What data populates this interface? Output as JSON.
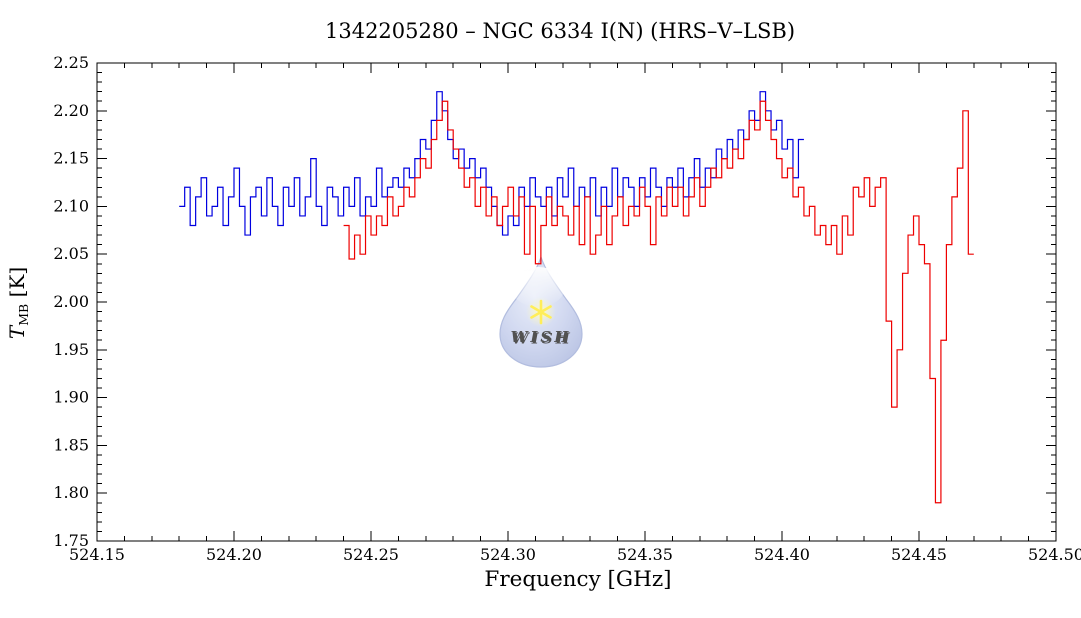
{
  "watermark": {
    "label": "WISH",
    "drop_color": "#b7c2e8",
    "drop_edge_color": "#8e9ed0",
    "star_color": "#ffe60a",
    "text_color": "#ece03a"
  },
  "chart_data": {
    "type": "line",
    "style": "step-histogram",
    "title": "1342205280 – NGC 6334 I(N) (HRS–V–LSB)",
    "xlabel": "Frequency [GHz]",
    "ylabel": "T_MB [K]",
    "ylabel_parts": {
      "symbol": "T",
      "subscript": "MB",
      "unit": " [K]"
    },
    "xlim": [
      524.15,
      524.5
    ],
    "ylim": [
      1.75,
      2.25
    ],
    "x_ticks": [
      "524.15",
      "524.20",
      "524.25",
      "524.30",
      "524.35",
      "524.40",
      "524.45",
      "524.50"
    ],
    "y_ticks": [
      "1.75",
      "1.80",
      "1.85",
      "1.90",
      "1.95",
      "2.00",
      "2.05",
      "2.10",
      "2.15",
      "2.20",
      "2.25"
    ],
    "x_minor_step": 0.01,
    "y_minor_step": 0.01,
    "grid": false,
    "legend": null,
    "axis_color": "#000000",
    "series": [
      {
        "name": "blue-spectrum",
        "color": "#0000e0",
        "x_start": 524.18,
        "x_step": 0.002,
        "values": [
          2.1,
          2.12,
          2.08,
          2.11,
          2.13,
          2.09,
          2.1,
          2.12,
          2.08,
          2.11,
          2.14,
          2.1,
          2.07,
          2.11,
          2.12,
          2.09,
          2.13,
          2.1,
          2.08,
          2.12,
          2.1,
          2.13,
          2.09,
          2.11,
          2.15,
          2.1,
          2.08,
          2.12,
          2.11,
          2.09,
          2.12,
          2.1,
          2.13,
          2.09,
          2.11,
          2.1,
          2.14,
          2.11,
          2.12,
          2.13,
          2.12,
          2.14,
          2.13,
          2.15,
          2.17,
          2.16,
          2.19,
          2.22,
          2.2,
          2.17,
          2.15,
          2.16,
          2.14,
          2.15,
          2.13,
          2.14,
          2.12,
          2.1,
          2.08,
          2.07,
          2.09,
          2.08,
          2.12,
          2.1,
          2.13,
          2.11,
          2.1,
          2.12,
          2.09,
          2.13,
          2.11,
          2.14,
          2.1,
          2.12,
          2.11,
          2.13,
          2.09,
          2.12,
          2.1,
          2.14,
          2.11,
          2.13,
          2.12,
          2.1,
          2.13,
          2.11,
          2.14,
          2.12,
          2.1,
          2.13,
          2.12,
          2.14,
          2.11,
          2.13,
          2.15,
          2.12,
          2.14,
          2.13,
          2.16,
          2.15,
          2.17,
          2.16,
          2.18,
          2.17,
          2.2,
          2.19,
          2.22,
          2.2,
          2.18,
          2.19,
          2.16,
          2.17,
          2.13,
          2.17
        ]
      },
      {
        "name": "red-spectrum",
        "color": "#ee0000",
        "x_start": 524.24,
        "x_step": 0.002,
        "values": [
          2.08,
          2.045,
          2.07,
          2.05,
          2.09,
          2.07,
          2.09,
          2.08,
          2.11,
          2.09,
          2.1,
          2.12,
          2.11,
          2.13,
          2.15,
          2.14,
          2.17,
          2.19,
          2.21,
          2.18,
          2.16,
          2.14,
          2.12,
          2.13,
          2.1,
          2.12,
          2.09,
          2.11,
          2.08,
          2.1,
          2.12,
          2.09,
          2.11,
          2.05,
          2.1,
          2.04,
          2.08,
          2.11,
          2.08,
          2.1,
          2.09,
          2.07,
          2.1,
          2.06,
          2.11,
          2.05,
          2.07,
          2.1,
          2.06,
          2.09,
          2.11,
          2.08,
          2.1,
          2.09,
          2.12,
          2.1,
          2.06,
          2.11,
          2.09,
          2.12,
          2.1,
          2.12,
          2.09,
          2.11,
          2.13,
          2.1,
          2.12,
          2.14,
          2.13,
          2.15,
          2.14,
          2.16,
          2.15,
          2.17,
          2.19,
          2.18,
          2.21,
          2.19,
          2.17,
          2.15,
          2.13,
          2.14,
          2.11,
          2.12,
          2.09,
          2.1,
          2.07,
          2.08,
          2.06,
          2.08,
          2.05,
          2.09,
          2.07,
          2.12,
          2.11,
          2.13,
          2.1,
          2.12,
          2.13,
          1.98,
          1.89,
          1.95,
          2.03,
          2.07,
          2.09,
          2.06,
          2.04,
          1.92,
          1.79,
          1.96,
          2.06,
          2.11,
          2.14,
          2.2,
          2.05
        ]
      }
    ]
  }
}
